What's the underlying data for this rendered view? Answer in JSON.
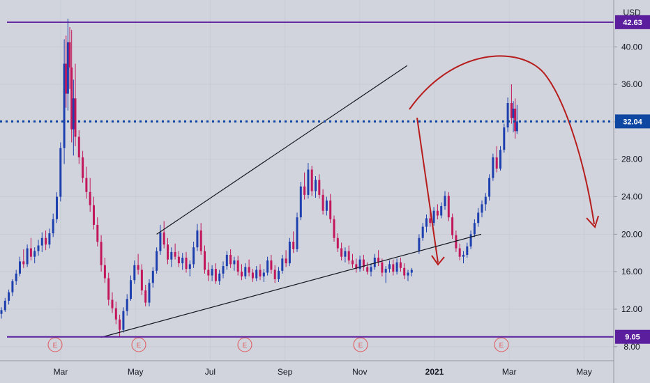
{
  "chart_data": {
    "type": "candlestick",
    "currency": "USD",
    "y_ticks": [
      "8.00",
      "12.00",
      "16.00",
      "20.00",
      "24.00",
      "28.00",
      "32.00",
      "36.00",
      "40.00"
    ],
    "y_range": [
      6.5,
      45.0
    ],
    "x_ticks": [
      {
        "label": "Mar",
        "bold": false
      },
      {
        "label": "May",
        "bold": false
      },
      {
        "label": "Jul",
        "bold": false
      },
      {
        "label": "Sep",
        "bold": false
      },
      {
        "label": "Nov",
        "bold": false
      },
      {
        "label": "2021",
        "bold": true
      },
      {
        "label": "Mar",
        "bold": false
      },
      {
        "label": "May",
        "bold": false
      }
    ],
    "levels": [
      {
        "name": "resistance",
        "value": 42.63,
        "label": "42.63",
        "style": "solid",
        "color": "#5b1f9e"
      },
      {
        "name": "current-price",
        "value": 32.04,
        "label": "32.04",
        "style": "dotted",
        "color": "#0d47a1"
      },
      {
        "name": "support",
        "value": 9.05,
        "label": "9.05",
        "style": "solid",
        "color": "#5b1f9e"
      }
    ],
    "earnings_marker": "E",
    "earnings_count": 5,
    "trend_lines": [
      {
        "name": "upper-channel-line",
        "from": [
          4.2,
          20.0
        ],
        "to": [
          10.98,
          38.0
        ]
      },
      {
        "name": "lower-channel-line",
        "from": [
          2.7,
          9.0
        ],
        "to": [
          12.98,
          20.0
        ]
      }
    ],
    "candles": [
      [
        0.0,
        11.5,
        12.2,
        11.0,
        11.9
      ],
      [
        0.1,
        11.9,
        13.2,
        11.7,
        12.9
      ],
      [
        0.2,
        12.9,
        14.1,
        12.5,
        13.8
      ],
      [
        0.3,
        13.8,
        15.2,
        13.4,
        15.0
      ],
      [
        0.4,
        15.0,
        16.2,
        14.6,
        15.8
      ],
      [
        0.5,
        15.8,
        17.6,
        15.5,
        17.1
      ],
      [
        0.6,
        17.1,
        18.4,
        16.4,
        16.8
      ],
      [
        0.7,
        16.8,
        18.9,
        16.5,
        18.5
      ],
      [
        0.8,
        18.5,
        19.6,
        17.2,
        17.6
      ],
      [
        0.9,
        17.6,
        18.6,
        16.9,
        18.2
      ],
      [
        1.0,
        18.2,
        19.4,
        17.7,
        18.8
      ],
      [
        1.1,
        18.8,
        20.2,
        18.1,
        19.6
      ],
      [
        1.2,
        19.6,
        20.4,
        18.3,
        18.9
      ],
      [
        1.3,
        18.9,
        20.6,
        18.5,
        20.1
      ],
      [
        1.4,
        20.1,
        22.2,
        19.7,
        21.6
      ],
      [
        1.5,
        21.6,
        24.5,
        21.2,
        24.0
      ],
      [
        1.6,
        24.0,
        29.8,
        23.5,
        29.2
      ],
      [
        1.7,
        29.2,
        40.8,
        27.5,
        38.2
      ],
      [
        1.75,
        38.2,
        41.2,
        33.5,
        35.0
      ],
      [
        1.8,
        35.0,
        43.0,
        33.2,
        40.5
      ],
      [
        1.85,
        40.5,
        42.1,
        35.5,
        37.8
      ],
      [
        1.9,
        37.8,
        41.8,
        29.8,
        31.2
      ],
      [
        1.95,
        31.2,
        36.5,
        28.4,
        34.5
      ],
      [
        2.0,
        34.5,
        38.2,
        29.4,
        30.4
      ],
      [
        2.1,
        30.4,
        31.1,
        27.5,
        28.2
      ],
      [
        2.2,
        28.2,
        28.9,
        25.5,
        26.0
      ],
      [
        2.3,
        26.0,
        27.2,
        23.8,
        24.5
      ],
      [
        2.4,
        24.5,
        26.0,
        22.4,
        23.1
      ],
      [
        2.5,
        23.1,
        24.0,
        20.5,
        21.0
      ],
      [
        2.6,
        21.0,
        21.8,
        18.7,
        19.2
      ],
      [
        2.7,
        19.2,
        19.9,
        16.0,
        16.7
      ],
      [
        2.8,
        16.7,
        17.5,
        14.8,
        15.3
      ],
      [
        2.9,
        15.3,
        15.9,
        12.4,
        13.0
      ],
      [
        3.0,
        13.0,
        13.8,
        11.6,
        12.1
      ],
      [
        3.1,
        12.1,
        12.8,
        10.4,
        10.9
      ],
      [
        3.2,
        10.9,
        11.4,
        9.05,
        9.8
      ],
      [
        3.3,
        9.8,
        12.2,
        9.5,
        11.8
      ],
      [
        3.4,
        11.8,
        13.6,
        11.3,
        13.1
      ],
      [
        3.5,
        13.1,
        15.6,
        12.9,
        15.1
      ],
      [
        3.6,
        15.1,
        17.2,
        14.7,
        16.7
      ],
      [
        3.7,
        16.7,
        17.9,
        15.7,
        16.2
      ],
      [
        3.8,
        16.2,
        16.8,
        13.5,
        14.0
      ],
      [
        3.9,
        14.0,
        14.6,
        12.3,
        12.7
      ],
      [
        4.0,
        12.7,
        15.2,
        12.3,
        14.8
      ],
      [
        4.1,
        14.8,
        16.5,
        14.3,
        16.1
      ],
      [
        4.2,
        16.1,
        18.6,
        15.8,
        18.2
      ],
      [
        4.3,
        18.2,
        21.0,
        17.8,
        20.2
      ],
      [
        4.4,
        20.2,
        21.4,
        18.5,
        18.9
      ],
      [
        4.5,
        18.9,
        19.6,
        16.8,
        17.3
      ],
      [
        4.6,
        17.3,
        18.6,
        16.5,
        18.1
      ],
      [
        4.7,
        18.1,
        19.0,
        17.3,
        17.6
      ],
      [
        4.8,
        17.6,
        18.2,
        16.5,
        16.9
      ],
      [
        4.9,
        16.9,
        18.0,
        16.2,
        17.5
      ],
      [
        5.0,
        17.5,
        18.1,
        15.9,
        16.3
      ],
      [
        5.1,
        16.3,
        17.2,
        15.5,
        16.8
      ],
      [
        5.2,
        16.8,
        19.2,
        16.4,
        18.6
      ],
      [
        5.3,
        18.6,
        21.1,
        18.2,
        20.4
      ],
      [
        5.4,
        20.4,
        21.2,
        17.8,
        18.2
      ],
      [
        5.5,
        18.2,
        18.8,
        15.8,
        16.2
      ],
      [
        5.6,
        16.2,
        17.0,
        15.0,
        15.6
      ],
      [
        5.7,
        15.6,
        16.7,
        15.0,
        16.3
      ],
      [
        5.8,
        16.3,
        16.9,
        14.7,
        15.0
      ],
      [
        5.9,
        15.0,
        16.2,
        14.6,
        15.8
      ],
      [
        6.0,
        15.8,
        17.1,
        15.3,
        16.6
      ],
      [
        6.1,
        16.6,
        18.2,
        16.2,
        17.8
      ],
      [
        6.2,
        17.8,
        18.4,
        16.4,
        16.8
      ],
      [
        6.3,
        16.8,
        17.6,
        16.1,
        17.2
      ],
      [
        6.4,
        17.2,
        17.7,
        15.6,
        16.0
      ],
      [
        6.5,
        16.0,
        16.8,
        15.1,
        15.5
      ],
      [
        6.6,
        15.5,
        16.9,
        15.2,
        16.5
      ],
      [
        6.7,
        16.5,
        17.3,
        15.5,
        15.9
      ],
      [
        6.8,
        15.9,
        16.3,
        14.9,
        15.3
      ],
      [
        6.9,
        15.3,
        16.6,
        15.0,
        16.2
      ],
      [
        7.0,
        16.2,
        16.8,
        15.1,
        15.5
      ],
      [
        7.1,
        15.5,
        16.3,
        14.9,
        15.9
      ],
      [
        7.2,
        15.9,
        17.6,
        15.6,
        17.2
      ],
      [
        7.3,
        17.2,
        17.8,
        15.8,
        16.2
      ],
      [
        7.4,
        16.2,
        16.7,
        14.8,
        15.2
      ],
      [
        7.5,
        15.2,
        16.5,
        14.9,
        16.1
      ],
      [
        7.6,
        16.1,
        17.8,
        15.8,
        17.4
      ],
      [
        7.7,
        17.4,
        18.3,
        16.5,
        16.9
      ],
      [
        7.8,
        16.9,
        19.6,
        16.6,
        19.2
      ],
      [
        7.9,
        19.2,
        20.3,
        18.0,
        18.4
      ],
      [
        8.0,
        18.4,
        22.3,
        18.1,
        21.8
      ],
      [
        8.1,
        21.8,
        25.6,
        21.5,
        25.1
      ],
      [
        8.2,
        25.1,
        26.6,
        23.7,
        24.2
      ],
      [
        8.3,
        24.2,
        27.6,
        23.8,
        26.9
      ],
      [
        8.4,
        26.9,
        27.3,
        24.1,
        24.6
      ],
      [
        8.5,
        24.6,
        26.2,
        23.9,
        25.8
      ],
      [
        8.6,
        25.8,
        26.4,
        23.8,
        24.2
      ],
      [
        8.7,
        24.2,
        24.8,
        22.1,
        22.5
      ],
      [
        8.8,
        22.5,
        24.0,
        22.0,
        23.6
      ],
      [
        8.9,
        23.6,
        24.3,
        21.2,
        21.6
      ],
      [
        9.0,
        21.6,
        22.0,
        19.2,
        19.6
      ],
      [
        9.1,
        19.6,
        20.1,
        18.1,
        18.5
      ],
      [
        9.2,
        18.5,
        19.1,
        17.2,
        17.6
      ],
      [
        9.3,
        17.6,
        18.6,
        17.0,
        18.2
      ],
      [
        9.4,
        18.2,
        18.8,
        16.8,
        17.2
      ],
      [
        9.5,
        17.2,
        17.9,
        16.4,
        16.8
      ],
      [
        9.6,
        16.8,
        17.4,
        15.9,
        16.3
      ],
      [
        9.7,
        16.3,
        17.7,
        16.0,
        17.3
      ],
      [
        9.8,
        17.3,
        17.8,
        16.1,
        16.5
      ],
      [
        9.9,
        16.5,
        17.0,
        15.7,
        16.0
      ],
      [
        10.0,
        16.0,
        16.9,
        15.5,
        16.5
      ],
      [
        10.1,
        16.5,
        17.9,
        16.2,
        17.5
      ],
      [
        10.2,
        17.5,
        18.3,
        16.6,
        17.0
      ],
      [
        10.3,
        17.0,
        17.4,
        15.5,
        15.9
      ],
      [
        10.4,
        15.9,
        16.6,
        14.8,
        16.3
      ],
      [
        10.5,
        16.3,
        17.2,
        15.9,
        16.8
      ],
      [
        10.6,
        16.8,
        17.3,
        15.6,
        16.0
      ],
      [
        10.7,
        16.0,
        17.4,
        15.7,
        17.0
      ],
      [
        10.8,
        17.0,
        17.5,
        16.0,
        16.4
      ],
      [
        10.9,
        16.4,
        16.9,
        15.2,
        15.6
      ],
      [
        11.0,
        15.6,
        16.2,
        15.0,
        15.9
      ],
      [
        11.1,
        15.9,
        16.4,
        15.5,
        16.2
      ],
      [
        11.3,
        18.2,
        20.0,
        17.9,
        19.6
      ],
      [
        11.4,
        19.6,
        21.2,
        19.3,
        20.8
      ],
      [
        11.5,
        20.8,
        22.1,
        20.2,
        21.7
      ],
      [
        11.6,
        21.7,
        22.6,
        20.8,
        21.2
      ],
      [
        11.7,
        21.2,
        22.9,
        20.9,
        22.5
      ],
      [
        11.8,
        22.5,
        23.2,
        21.6,
        22.0
      ],
      [
        11.9,
        22.0,
        23.4,
        21.7,
        23.0
      ],
      [
        12.0,
        23.0,
        24.6,
        22.6,
        24.1
      ],
      [
        12.1,
        24.1,
        24.5,
        21.4,
        21.8
      ],
      [
        12.2,
        21.8,
        22.2,
        19.5,
        19.9
      ],
      [
        12.3,
        19.9,
        20.4,
        18.1,
        18.5
      ],
      [
        12.4,
        18.5,
        19.0,
        17.2,
        17.6
      ],
      [
        12.5,
        17.6,
        18.2,
        16.9,
        17.8
      ],
      [
        12.6,
        17.8,
        19.1,
        17.5,
        18.7
      ],
      [
        12.7,
        18.7,
        20.4,
        18.4,
        20.0
      ],
      [
        12.8,
        20.0,
        21.6,
        19.7,
        21.2
      ],
      [
        12.9,
        21.2,
        22.8,
        20.8,
        22.3
      ],
      [
        13.0,
        22.3,
        23.6,
        21.8,
        23.2
      ],
      [
        13.1,
        23.2,
        24.4,
        22.5,
        24.0
      ],
      [
        13.2,
        24.0,
        26.4,
        23.6,
        26.0
      ],
      [
        13.3,
        26.0,
        28.6,
        25.7,
        28.2
      ],
      [
        13.4,
        28.2,
        29.4,
        26.6,
        27.0
      ],
      [
        13.5,
        27.0,
        29.4,
        26.8,
        29.0
      ],
      [
        13.6,
        29.0,
        31.8,
        28.7,
        31.4
      ],
      [
        13.7,
        31.4,
        34.6,
        30.9,
        34.0
      ],
      [
        13.8,
        34.0,
        36.0,
        31.8,
        32.4
      ],
      [
        13.85,
        32.4,
        34.2,
        30.9,
        33.4
      ],
      [
        13.9,
        33.4,
        34.5,
        30.2,
        31.0
      ],
      [
        13.95,
        31.0,
        33.8,
        30.7,
        32.04
      ]
    ]
  }
}
